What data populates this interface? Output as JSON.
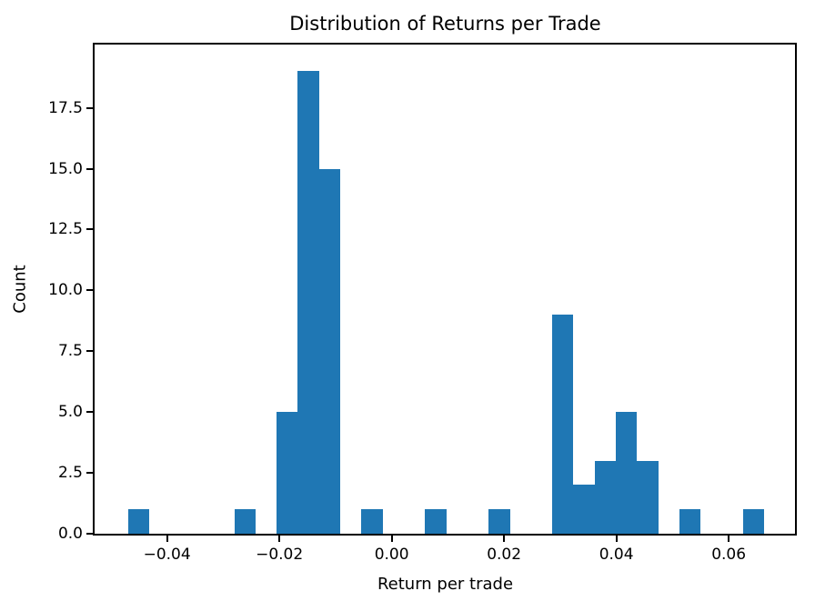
{
  "chart_data": {
    "type": "bar",
    "subtype": "histogram",
    "title": "Distribution of Returns per Trade",
    "xlabel": "Return per trade",
    "ylabel": "Count",
    "bar_color": "#1f77b4",
    "text_color": "#000000",
    "spine_color": "#000000",
    "grid": false,
    "legend_position": "none",
    "bin_start": -0.0469,
    "bin_width": 0.003774,
    "counts": [
      1,
      0,
      0,
      0,
      0,
      1,
      0,
      5,
      19,
      15,
      0,
      1,
      0,
      0,
      1,
      0,
      0,
      1,
      0,
      0,
      9,
      2,
      3,
      5,
      3,
      0,
      1,
      0,
      0,
      1
    ],
    "total_observations": 68,
    "xlim": [
      -0.0529,
      0.0718
    ],
    "ylim": [
      0,
      20.1
    ],
    "xticks": [
      {
        "v": -0.04,
        "label": "−0.04"
      },
      {
        "v": -0.02,
        "label": "−0.02"
      },
      {
        "v": 0.0,
        "label": "0.00"
      },
      {
        "v": 0.02,
        "label": "0.02"
      },
      {
        "v": 0.04,
        "label": "0.04"
      },
      {
        "v": 0.06,
        "label": "0.06"
      }
    ],
    "yticks": [
      {
        "v": 0.0,
        "label": "0.0"
      },
      {
        "v": 2.5,
        "label": "2.5"
      },
      {
        "v": 5.0,
        "label": "5.0"
      },
      {
        "v": 7.5,
        "label": "7.5"
      },
      {
        "v": 10.0,
        "label": "10.0"
      },
      {
        "v": 12.5,
        "label": "12.5"
      },
      {
        "v": 15.0,
        "label": "15.0"
      },
      {
        "v": 17.5,
        "label": "17.5"
      }
    ]
  }
}
